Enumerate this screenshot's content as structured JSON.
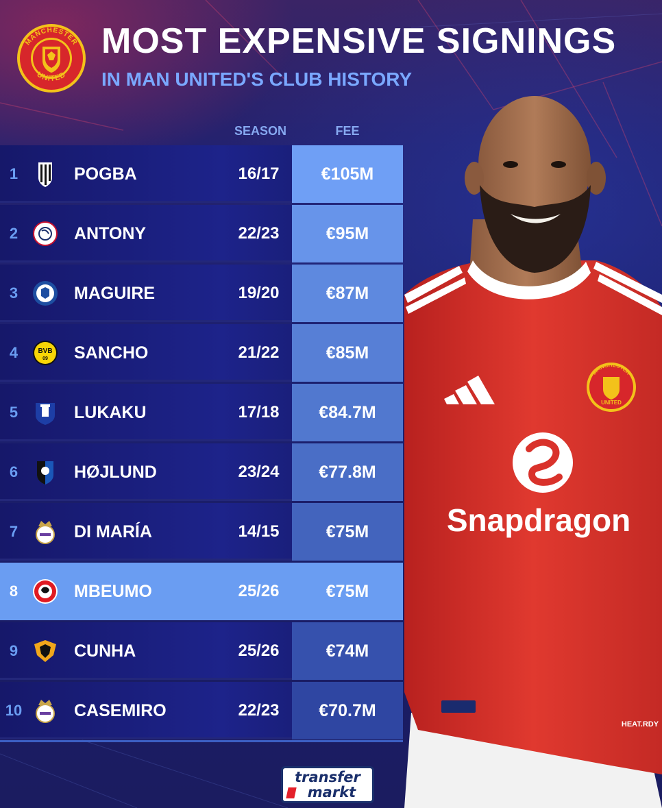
{
  "header": {
    "title": "MOST EXPENSIVE SIGNINGS",
    "subtitle": "IN MAN UNITED'S CLUB HISTORY",
    "crest_icon": "manchester-united-crest",
    "crest_text_top": "MANCHESTER",
    "crest_text_bottom": "UNITED"
  },
  "columns": {
    "season": "SEASON",
    "fee": "FEE"
  },
  "rows": [
    {
      "rank": "1",
      "player": "POGBA",
      "season": "16/17",
      "fee": "€105M",
      "club_icon": "juventus-crest",
      "fee_bg": "#6f9ff5",
      "fee_fill": 1.0
    },
    {
      "rank": "2",
      "player": "ANTONY",
      "season": "22/23",
      "fee": "€95M",
      "club_icon": "ajax-crest",
      "fee_bg": "#6794ea",
      "fee_fill": 0.905
    },
    {
      "rank": "3",
      "player": "MAGUIRE",
      "season": "19/20",
      "fee": "€87M",
      "club_icon": "leicester-city-crest",
      "fee_bg": "#5e89df",
      "fee_fill": 0.829
    },
    {
      "rank": "4",
      "player": "SANCHO",
      "season": "21/22",
      "fee": "€85M",
      "club_icon": "borussia-dortmund-crest",
      "fee_bg": "#577fd6",
      "fee_fill": 0.81
    },
    {
      "rank": "5",
      "player": "LUKAKU",
      "season": "17/18",
      "fee": "€84.7M",
      "club_icon": "everton-crest",
      "fee_bg": "#5178cf",
      "fee_fill": 0.807
    },
    {
      "rank": "6",
      "player": "HØJLUND",
      "season": "23/24",
      "fee": "€77.8M",
      "club_icon": "atalanta-crest",
      "fee_bg": "#4a6ec6",
      "fee_fill": 0.741
    },
    {
      "rank": "7",
      "player": "DI MARÍA",
      "season": "14/15",
      "fee": "€75M",
      "club_icon": "real-madrid-crest",
      "fee_bg": "#4364bd",
      "fee_fill": 0.714
    },
    {
      "rank": "8",
      "player": "MBEUMO",
      "season": "25/26",
      "fee": "€75M",
      "club_icon": "brentford-crest",
      "fee_bg": "#6a9df2",
      "fee_fill": 0.714,
      "highlight": true
    },
    {
      "rank": "9",
      "player": "CUNHA",
      "season": "25/26",
      "fee": "€74M",
      "club_icon": "wolves-crest",
      "fee_bg": "#3651ad",
      "fee_fill": 0.705
    },
    {
      "rank": "10",
      "player": "CASEMIRO",
      "season": "22/23",
      "fee": "€70.7M",
      "club_icon": "real-madrid-crest",
      "fee_bg": "#2f46a2",
      "fee_fill": 0.673
    }
  ],
  "photo": {
    "shirt_sponsor": "Snapdragon",
    "shirt_crest_text_top": "MANCHESTER",
    "shirt_crest_text_bottom": "UNITED",
    "shirt_tag": "HEAT.RDY"
  },
  "footer": {
    "brand_line1": "transfer",
    "brand_line2": "markt",
    "brand_icon": "transfermarkt-logo"
  },
  "colors": {
    "accent": "#6a9df2",
    "title": "#ffffff",
    "subtitle": "#7aa8ff",
    "shirt_red": "#d9322b"
  }
}
